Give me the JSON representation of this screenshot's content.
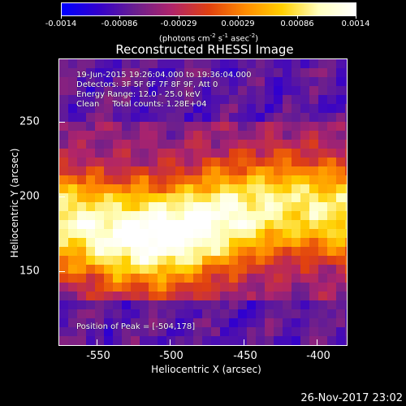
{
  "colorbar": {
    "labels": [
      "-0.0014",
      "-0.00086",
      "-0.00029",
      "0.00029",
      "0.00086",
      "0.0014"
    ],
    "units": "(photons cm",
    "units_exp1": "-2",
    "units_mid": " s",
    "units_exp2": "-1",
    "units_end": " asec",
    "units_exp3": "-2",
    "units_close": ")",
    "gradient_stops": [
      "#0000ff",
      "#3300cc",
      "#6a1f8f",
      "#b0246a",
      "#e04010",
      "#ff8c00",
      "#ffd000",
      "#ffffc0",
      "#ffffff"
    ]
  },
  "title": "Reconstructed RHESSI Image",
  "info": {
    "line1": "19-Jun-2015 19:26:04.000 to 19:36:04.000",
    "line2": "Detectors: 3F 5F 6F 7F 8F 9F, Att 0",
    "line3": "Energy Range: 12.0 - 25.0 keV",
    "line4": "Clean     Total counts: 1.28E+04",
    "peak": "Position of Peak = [-504,178]"
  },
  "axes": {
    "xlabel": "Heliocentric X (arcsec)",
    "ylabel": "Heliocentric Y (arcsec)",
    "xticks": [
      "-550",
      "-500",
      "-450",
      "-400"
    ],
    "yticks": [
      "250",
      "200",
      "150"
    ]
  },
  "timestamp": "26-Nov-2017 23:02"
}
